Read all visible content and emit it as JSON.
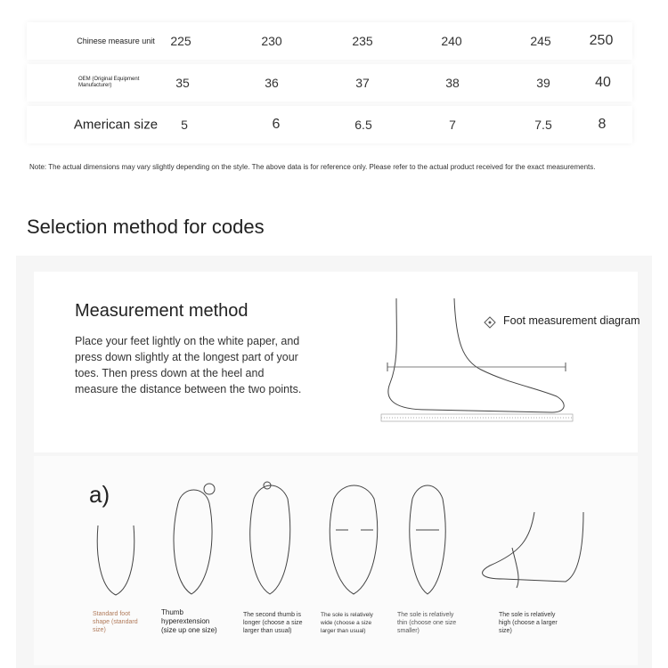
{
  "size_table": {
    "rows": [
      {
        "label": "Chinese measure unit",
        "values": [
          "225",
          "230",
          "235",
          "240",
          "245",
          "250"
        ]
      },
      {
        "label": "OEM (Original Equipment Manufacturer)",
        "values": [
          "35",
          "36",
          "37",
          "38",
          "39",
          "40"
        ]
      },
      {
        "label": "American size",
        "values": [
          "5",
          "6",
          "6.5",
          "7",
          "7.5",
          "8"
        ]
      }
    ],
    "note": "Note: The actual dimensions may vary slightly depending on the style. The above data is for reference only. Please refer to the actual product received for the exact measurements."
  },
  "section_title": "Selection method for codes",
  "measurement": {
    "title": "Measurement method",
    "text": "Place your feet lightly on the white paper, and press down slightly at the longest part of your toes. Then press down at the heel and measure the distance between the two points.",
    "diagram_label": "Foot measurement diagram"
  },
  "foot_types": {
    "marker": "a)",
    "items": [
      {
        "caption": "Standard foot shape (standard size)",
        "color": "#b07a5a"
      },
      {
        "caption": "Thumb hyperextension (size up one size)",
        "color": "#222"
      },
      {
        "caption": "The second thumb is longer (choose a size larger than usual)",
        "color": "#333"
      },
      {
        "caption": "The sole is relatively wide (choose a size larger than usual)",
        "color": "#333"
      },
      {
        "caption": "The sole is relatively thin (choose one size smaller)",
        "color": "#555"
      },
      {
        "caption": "The sole is relatively high (choose a larger size)",
        "color": "#333"
      }
    ]
  }
}
